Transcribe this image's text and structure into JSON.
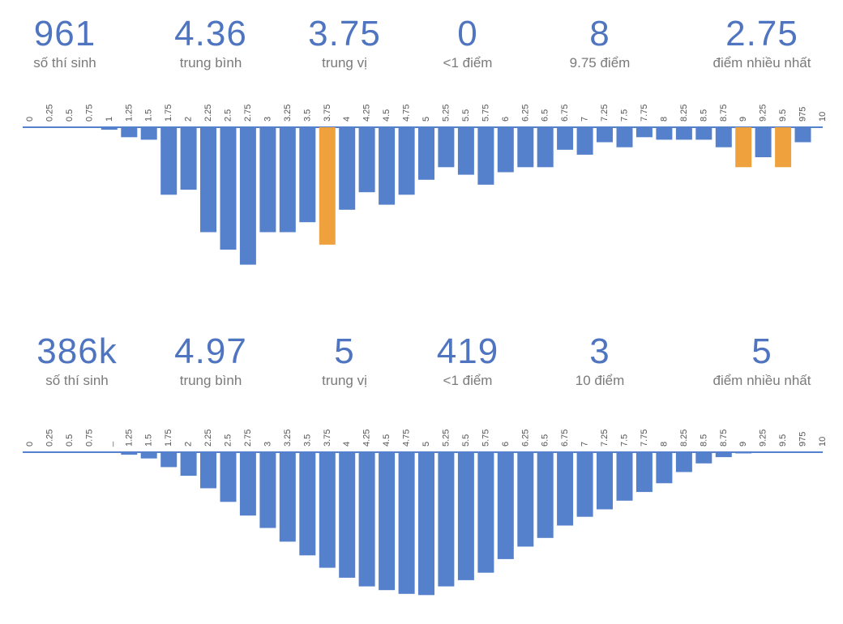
{
  "colors": {
    "bar": "#5580cc",
    "highlight": "#efa13e",
    "axis": "#5580cc",
    "stat": "#4f74c0",
    "label": "#7a7a7a"
  },
  "chart_data": [
    {
      "type": "bar",
      "orientation": "downward",
      "stats": [
        {
          "value": "961",
          "label": "số thí sinh"
        },
        {
          "value": "4.36",
          "label": "trung bình"
        },
        {
          "value": "3.75",
          "label": "trung vị"
        },
        {
          "value": "0",
          "label": "<1 điểm"
        },
        {
          "value": "8",
          "label": "9.75 điểm"
        },
        {
          "value": "2.75",
          "label": "điểm nhiều nhất"
        }
      ],
      "categories": [
        "0",
        "0.25",
        "0.5",
        "0.75",
        "1",
        "1.25",
        "1.5",
        "1.75",
        "2",
        "2.25",
        "2.5",
        "2.75",
        "3",
        "3.25",
        "3.5",
        "3.75",
        "4",
        "4.25",
        "4.5",
        "4.75",
        "5",
        "5.25",
        "5.5",
        "5.75",
        "6",
        "6.25",
        "6.5",
        "6.75",
        "7",
        "7.25",
        "7.5",
        "7.75",
        "8",
        "8.25",
        "8.5",
        "8.75",
        "9",
        "9.25",
        "9.5",
        "975",
        "10"
      ],
      "values": [
        0,
        0,
        0,
        0,
        1,
        4,
        5,
        27,
        25,
        42,
        49,
        55,
        42,
        42,
        38,
        47,
        33,
        26,
        31,
        27,
        21,
        16,
        19,
        23,
        18,
        16,
        16,
        9,
        11,
        6,
        8,
        4,
        5,
        5,
        5,
        8,
        16,
        12,
        16,
        6,
        0
      ],
      "highlight": [
        15,
        36,
        38
      ],
      "ylim": [
        0,
        60
      ]
    },
    {
      "type": "bar",
      "orientation": "downward",
      "stats": [
        {
          "value": "386k",
          "label": "số thí sinh"
        },
        {
          "value": "4.97",
          "label": "trung bình"
        },
        {
          "value": "5",
          "label": "trung vị"
        },
        {
          "value": "419",
          "label": "<1 điểm"
        },
        {
          "value": "3",
          "label": "10 điểm"
        },
        {
          "value": "5",
          "label": "điểm nhiều nhất"
        }
      ],
      "categories": [
        "0",
        "0.25",
        "0.5",
        "0.75",
        "_",
        "1.25",
        "1.5",
        "1.75",
        "2",
        "2.25",
        "2.5",
        "2.75",
        "3",
        "3.25",
        "3.5",
        "3.75",
        "4",
        "4.25",
        "4.5",
        "4.75",
        "5",
        "5.25",
        "5.5",
        "5.75",
        "6",
        "6.25",
        "6.5",
        "6.75",
        "7",
        "7.25",
        "7.5",
        "7.75",
        "8",
        "8.25",
        "8.5",
        "8.75",
        "9",
        "9.25",
        "9.5",
        "975",
        "10"
      ],
      "values": [
        0,
        0,
        0,
        0,
        0,
        2,
        5,
        12,
        19,
        29,
        40,
        51,
        61,
        72,
        83,
        93,
        101,
        108,
        111,
        114,
        115,
        108,
        103,
        97,
        86,
        76,
        69,
        59,
        52,
        46,
        39,
        32,
        25,
        16,
        9,
        4,
        1,
        0,
        0,
        0,
        0
      ],
      "highlight": [],
      "ylim": [
        0,
        120
      ]
    }
  ]
}
